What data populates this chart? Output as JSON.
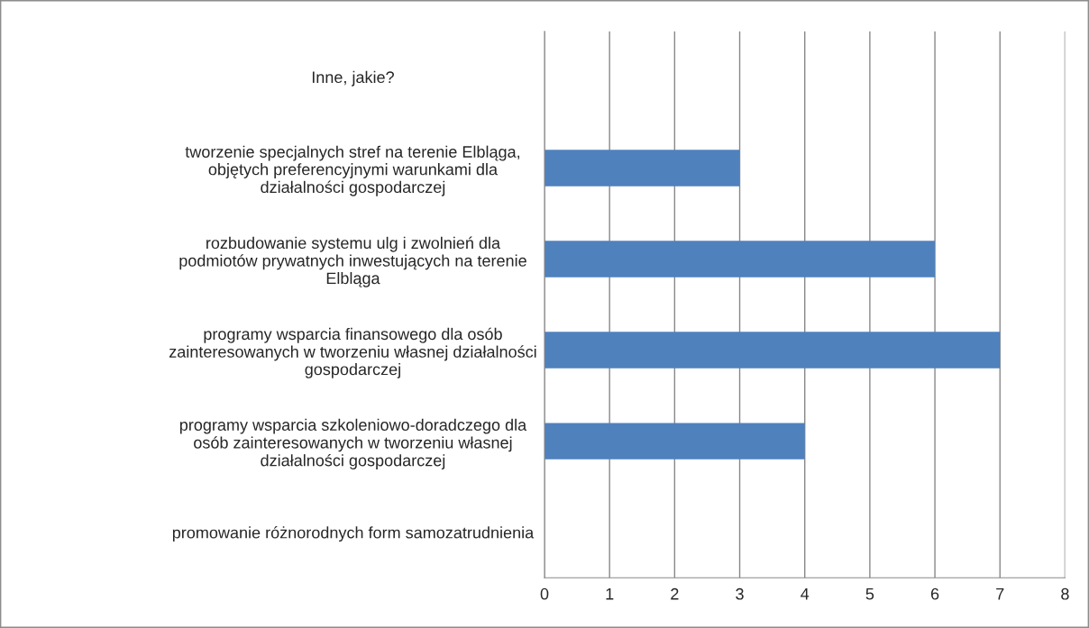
{
  "chart_data": {
    "type": "bar",
    "orientation": "horizontal",
    "categories": [
      "Inne, jakie?",
      "tworzenie specjalnych stref na terenie Elbląga,\nobjętych preferencyjnymi warunkami dla\ndziałalności gospodarczej",
      "rozbudowanie systemu ulg i zwolnień dla\npodmiotów prywatnych inwestujących na terenie\nElbląga",
      "programy wsparcia finansowego dla osób\nzainteresowanych w tworzeniu własnej działalności\ngospodarczej",
      "programy wsparcia szkoleniowo-doradczego dla\nosób zainteresowanych w tworzeniu własnej\ndziałalności gospodarczej",
      "promowanie różnorodnych form samozatrudnienia"
    ],
    "values": [
      0,
      3,
      6,
      7,
      4,
      0
    ],
    "color": "#4f81bd",
    "xlim": [
      0,
      8
    ],
    "xticks": [
      0,
      1,
      2,
      3,
      4,
      5,
      6,
      7,
      8
    ],
    "grid": "x",
    "legend": false
  }
}
